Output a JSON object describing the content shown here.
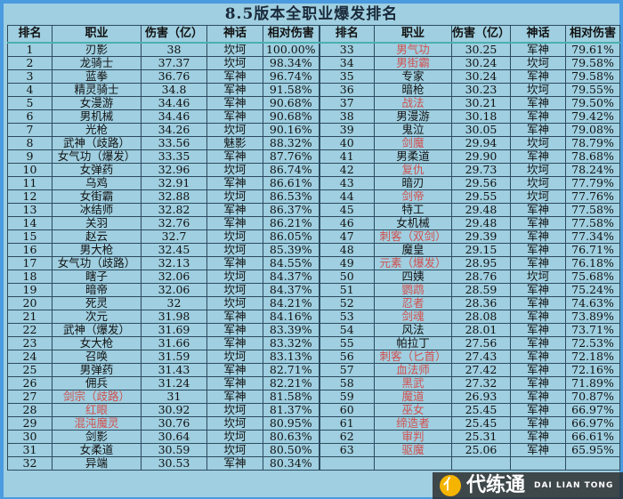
{
  "title": "8.5版本全职业爆发排名",
  "headers": [
    "排名",
    "职业",
    "伤害（亿）",
    "神话",
    "相对伤害"
  ],
  "highlight_color": "#d0504e",
  "rows": [
    [
      "1",
      "刃影",
      "38",
      "坎坷",
      "100.00%",
      false
    ],
    [
      "2",
      "龙骑士",
      "37.37",
      "坎坷",
      "98.34%",
      false
    ],
    [
      "3",
      "蓝拳",
      "36.76",
      "军神",
      "96.74%",
      false
    ],
    [
      "4",
      "精灵骑士",
      "34.8",
      "军神",
      "91.58%",
      false
    ],
    [
      "5",
      "女漫游",
      "34.46",
      "军神",
      "90.68%",
      false
    ],
    [
      "6",
      "男机械",
      "34.46",
      "军神",
      "90.68%",
      false
    ],
    [
      "7",
      "光枪",
      "34.26",
      "坎坷",
      "90.16%",
      false
    ],
    [
      "8",
      "武神（歧路）",
      "33.56",
      "魅影",
      "88.32%",
      false
    ],
    [
      "9",
      "女气功（爆发）",
      "33.35",
      "军神",
      "87.76%",
      false
    ],
    [
      "10",
      "女弹药",
      "32.96",
      "坎坷",
      "86.74%",
      false
    ],
    [
      "11",
      "乌鸡",
      "32.91",
      "军神",
      "86.61%",
      false
    ],
    [
      "12",
      "女街霸",
      "32.88",
      "坎坷",
      "86.53%",
      false
    ],
    [
      "13",
      "冰结师",
      "32.82",
      "军神",
      "86.37%",
      false
    ],
    [
      "14",
      "关羽",
      "32.76",
      "军神",
      "86.21%",
      false
    ],
    [
      "15",
      "赵云",
      "32.7",
      "坎坷",
      "86.05%",
      false
    ],
    [
      "16",
      "男大枪",
      "32.45",
      "坎坷",
      "85.39%",
      false
    ],
    [
      "17",
      "女气功（歧路）",
      "32.13",
      "军神",
      "84.55%",
      false
    ],
    [
      "18",
      "瞎子",
      "32.06",
      "坎坷",
      "84.37%",
      false
    ],
    [
      "19",
      "暗帝",
      "32.06",
      "坎坷",
      "84.37%",
      false
    ],
    [
      "20",
      "死灵",
      "32",
      "坎坷",
      "84.21%",
      false
    ],
    [
      "21",
      "次元",
      "31.98",
      "军神",
      "84.16%",
      false
    ],
    [
      "22",
      "武神（爆发）",
      "31.69",
      "军神",
      "83.39%",
      false
    ],
    [
      "23",
      "女大枪",
      "31.66",
      "军神",
      "83.32%",
      false
    ],
    [
      "24",
      "召唤",
      "31.59",
      "坎坷",
      "83.13%",
      false
    ],
    [
      "25",
      "男弹药",
      "31.43",
      "军神",
      "82.71%",
      false
    ],
    [
      "26",
      "佣兵",
      "31.24",
      "军神",
      "82.21%",
      false
    ],
    [
      "27",
      "剑宗（歧路）",
      "31",
      "军神",
      "81.58%",
      true
    ],
    [
      "28",
      "红眼",
      "30.92",
      "坎坷",
      "81.37%",
      true
    ],
    [
      "29",
      "混沌魔灵",
      "30.76",
      "坎坷",
      "80.95%",
      true
    ],
    [
      "30",
      "剑影",
      "30.64",
      "坎坷",
      "80.63%",
      false
    ],
    [
      "31",
      "女柔道",
      "30.59",
      "坎坷",
      "80.50%",
      false
    ],
    [
      "32",
      "异端",
      "30.53",
      "军神",
      "80.34%",
      false
    ],
    [
      "33",
      "男气功",
      "30.25",
      "军神",
      "79.61%",
      true
    ],
    [
      "34",
      "男街霸",
      "30.24",
      "坎坷",
      "79.58%",
      true
    ],
    [
      "35",
      "专家",
      "30.24",
      "军神",
      "79.58%",
      false
    ],
    [
      "36",
      "暗枪",
      "30.23",
      "坎坷",
      "79.55%",
      false
    ],
    [
      "37",
      "战法",
      "30.21",
      "军神",
      "79.50%",
      true
    ],
    [
      "38",
      "男漫游",
      "30.18",
      "军神",
      "79.42%",
      false
    ],
    [
      "39",
      "鬼泣",
      "30.05",
      "军神",
      "79.08%",
      false
    ],
    [
      "40",
      "剑魔",
      "29.94",
      "坎坷",
      "78.79%",
      true
    ],
    [
      "41",
      "男柔道",
      "29.90",
      "军神",
      "78.68%",
      false
    ],
    [
      "42",
      "复仇",
      "29.73",
      "坎坷",
      "78.24%",
      true
    ],
    [
      "43",
      "暗刃",
      "29.56",
      "坎坷",
      "77.79%",
      false
    ],
    [
      "44",
      "剑帝",
      "29.55",
      "坎坷",
      "77.76%",
      true
    ],
    [
      "45",
      "特工",
      "29.48",
      "军神",
      "77.58%",
      false
    ],
    [
      "46",
      "女机械",
      "29.48",
      "军神",
      "77.58%",
      false
    ],
    [
      "47",
      "刺客（双剑）",
      "29.39",
      "军神",
      "77.34%",
      true
    ],
    [
      "48",
      "魔皇",
      "29.15",
      "军神",
      "76.71%",
      false
    ],
    [
      "49",
      "元素（爆发）",
      "28.95",
      "军神",
      "76.18%",
      true
    ],
    [
      "50",
      "四姨",
      "28.76",
      "坎坷",
      "75.68%",
      false
    ],
    [
      "51",
      "鹦鹉",
      "28.59",
      "军神",
      "75.24%",
      true
    ],
    [
      "52",
      "忍者",
      "28.36",
      "军神",
      "74.63%",
      true
    ],
    [
      "53",
      "剑魂",
      "28.08",
      "军神",
      "73.89%",
      true
    ],
    [
      "54",
      "风法",
      "28.01",
      "军神",
      "73.71%",
      false
    ],
    [
      "55",
      "帕拉丁",
      "27.56",
      "军神",
      "72.53%",
      false
    ],
    [
      "56",
      "刺客（匕首）",
      "27.43",
      "军神",
      "72.18%",
      true
    ],
    [
      "57",
      "血法师",
      "27.42",
      "军神",
      "72.16%",
      true
    ],
    [
      "58",
      "黑武",
      "27.32",
      "军神",
      "71.89%",
      true
    ],
    [
      "59",
      "魔道",
      "26.93",
      "军神",
      "70.87%",
      true
    ],
    [
      "60",
      "巫女",
      "25.45",
      "军神",
      "66.97%",
      true
    ],
    [
      "61",
      "缔造者",
      "25.45",
      "军神",
      "66.97%",
      true
    ],
    [
      "62",
      "审判",
      "25.31",
      "军神",
      "66.61%",
      true
    ],
    [
      "63",
      "驱魔",
      "25.06",
      "军神",
      "65.95%",
      true
    ]
  ],
  "watermark": {
    "cn": "代练通",
    "en": "DAI LIAN TONG"
  }
}
